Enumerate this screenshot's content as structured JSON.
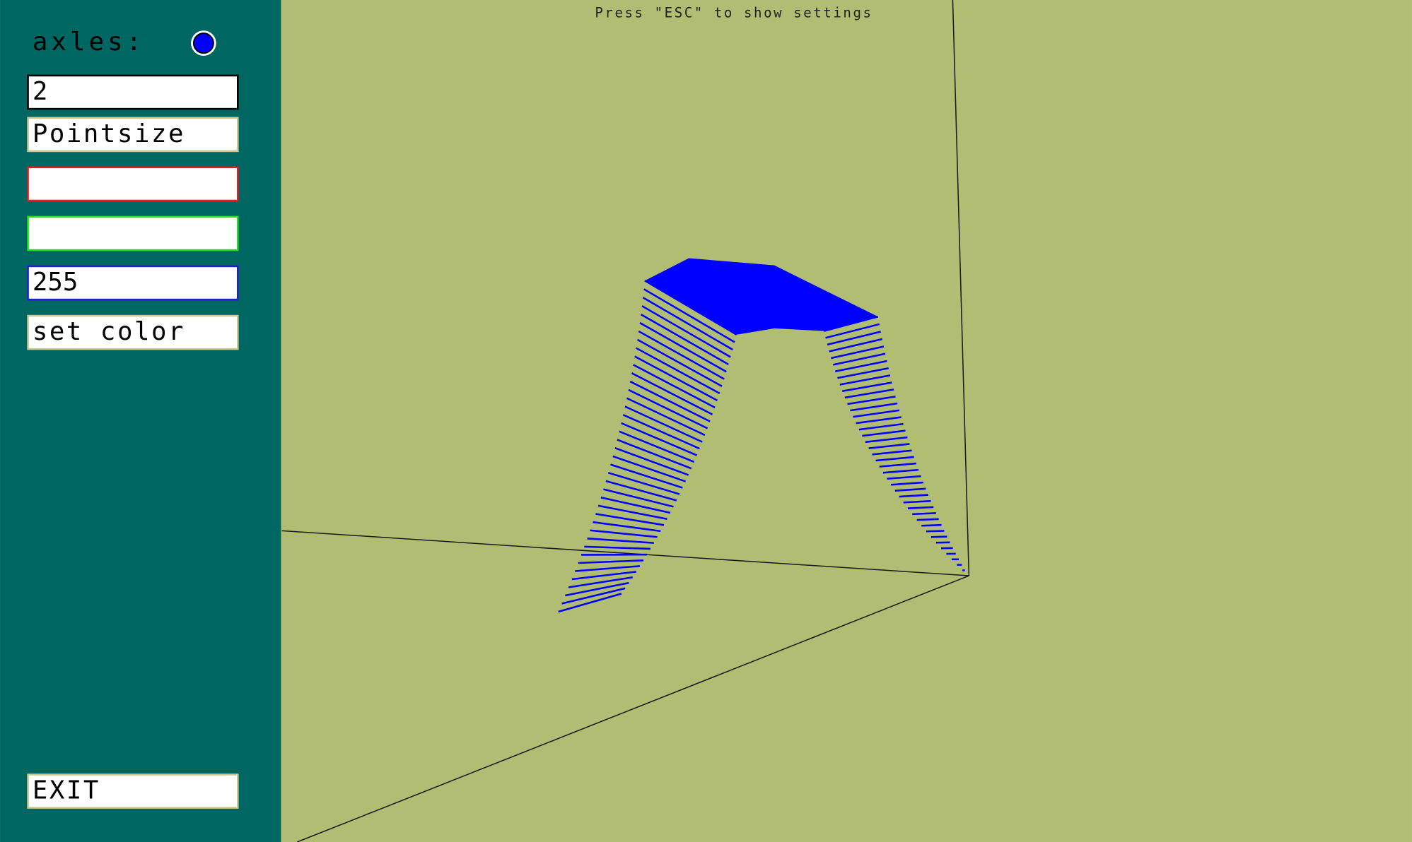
{
  "sidebar": {
    "axles_label": "axles:",
    "point_size_value": "2",
    "point_size_button": "Pointsize",
    "red_value": "",
    "green_value": "",
    "blue_value": "255",
    "set_color_button": "set color",
    "exit_button": "EXIT"
  },
  "hint": "Press \"ESC\" to show settings"
}
